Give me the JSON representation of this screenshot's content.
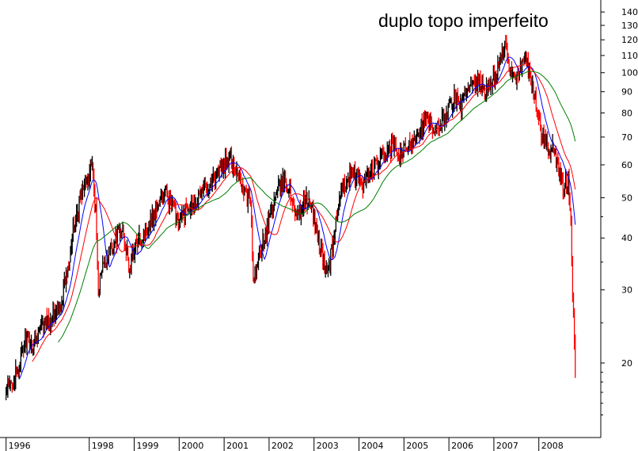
{
  "chart_data": {
    "type": "line",
    "title": "duplo topo imperfeito",
    "xlabel": "",
    "ylabel": "",
    "y_scale": "log",
    "ylim": [
      13,
      145
    ],
    "xlim": [
      1995.9,
      2008.95
    ],
    "grid": false,
    "y_axis_position": "right",
    "y_ticks": [
      140,
      130,
      120,
      110,
      100,
      90,
      80,
      70,
      60,
      50,
      40,
      30,
      20
    ],
    "y_minor_ticks": [
      15,
      16,
      17,
      18,
      19,
      25,
      35,
      45
    ],
    "x_tick_labels": [
      "1996",
      "1998",
      "1999",
      "2000",
      "2001",
      "2002",
      "2003",
      "2004",
      "2005",
      "2006",
      "2007",
      "2008"
    ],
    "x_tick_values": [
      1996.0,
      1997.85,
      1998.85,
      1999.85,
      2000.85,
      2001.85,
      2002.85,
      2003.85,
      2004.85,
      2005.85,
      2006.85,
      2007.85
    ],
    "candles": {
      "up_color": "#000000",
      "down_color": "#ff0000",
      "anchors": [
        [
          1996.0,
          17
        ],
        [
          1996.25,
          19
        ],
        [
          1996.45,
          23
        ],
        [
          1996.6,
          22
        ],
        [
          1996.75,
          24
        ],
        [
          1996.9,
          25
        ],
        [
          1997.05,
          26
        ],
        [
          1997.2,
          27
        ],
        [
          1997.35,
          33
        ],
        [
          1997.5,
          42
        ],
        [
          1997.65,
          50
        ],
        [
          1997.8,
          55
        ],
        [
          1997.9,
          61
        ],
        [
          1998.0,
          45
        ],
        [
          1998.05,
          30
        ],
        [
          1998.15,
          34
        ],
        [
          1998.3,
          37
        ],
        [
          1998.45,
          40
        ],
        [
          1998.6,
          42
        ],
        [
          1998.75,
          33
        ],
        [
          1998.85,
          38
        ],
        [
          1999.0,
          40
        ],
        [
          1999.2,
          44
        ],
        [
          1999.4,
          48
        ],
        [
          1999.55,
          52
        ],
        [
          1999.75,
          46
        ],
        [
          1999.85,
          44
        ],
        [
          2000.05,
          48
        ],
        [
          2000.25,
          50
        ],
        [
          2000.45,
          53
        ],
        [
          2000.65,
          57
        ],
        [
          2000.85,
          60
        ],
        [
          2001.0,
          62
        ],
        [
          2001.15,
          58
        ],
        [
          2001.3,
          52
        ],
        [
          2001.45,
          48
        ],
        [
          2001.5,
          30
        ],
        [
          2001.6,
          35
        ],
        [
          2001.75,
          40
        ],
        [
          2001.9,
          47
        ],
        [
          2002.05,
          52
        ],
        [
          2002.2,
          56
        ],
        [
          2002.35,
          50
        ],
        [
          2002.5,
          45
        ],
        [
          2002.65,
          50
        ],
        [
          2002.8,
          47
        ],
        [
          2002.95,
          40
        ],
        [
          2003.1,
          33
        ],
        [
          2003.2,
          35
        ],
        [
          2003.35,
          45
        ],
        [
          2003.5,
          53
        ],
        [
          2003.65,
          57
        ],
        [
          2003.8,
          56
        ],
        [
          2003.95,
          54
        ],
        [
          2004.15,
          58
        ],
        [
          2004.3,
          61
        ],
        [
          2004.45,
          64
        ],
        [
          2004.6,
          67
        ],
        [
          2004.75,
          63
        ],
        [
          2004.9,
          65
        ],
        [
          2005.05,
          69
        ],
        [
          2005.2,
          73
        ],
        [
          2005.35,
          78
        ],
        [
          2005.5,
          71
        ],
        [
          2005.65,
          75
        ],
        [
          2005.8,
          80
        ],
        [
          2005.95,
          87
        ],
        [
          2006.1,
          83
        ],
        [
          2006.25,
          90
        ],
        [
          2006.4,
          92
        ],
        [
          2006.55,
          94
        ],
        [
          2006.7,
          90
        ],
        [
          2006.85,
          98
        ],
        [
          2007.0,
          106
        ],
        [
          2007.1,
          118
        ],
        [
          2007.2,
          100
        ],
        [
          2007.35,
          97
        ],
        [
          2007.5,
          110
        ],
        [
          2007.6,
          103
        ],
        [
          2007.7,
          93
        ],
        [
          2007.8,
          82
        ],
        [
          2007.9,
          72
        ],
        [
          2008.0,
          68
        ],
        [
          2008.1,
          65
        ],
        [
          2008.2,
          66
        ],
        [
          2008.3,
          58
        ],
        [
          2008.4,
          52
        ],
        [
          2008.5,
          56
        ],
        [
          2008.55,
          48
        ],
        [
          2008.62,
          26
        ],
        [
          2008.66,
          20
        ]
      ],
      "count": 655
    },
    "series": [
      {
        "color": "#0000ff",
        "period": 10
      },
      {
        "color": "#ff0000",
        "period": 20
      },
      {
        "color": "#008000",
        "period": 40
      }
    ]
  }
}
